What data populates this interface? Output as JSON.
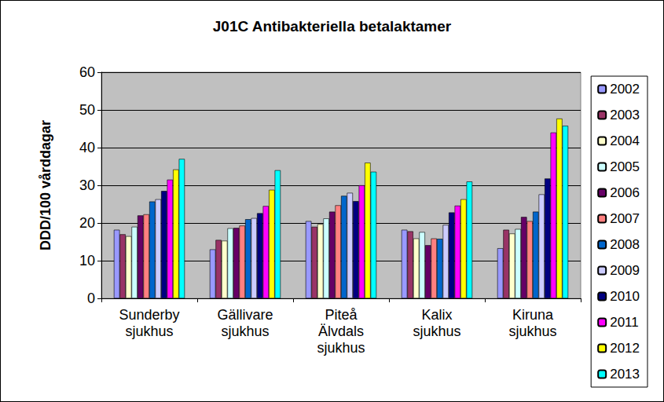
{
  "chart_data": {
    "type": "bar",
    "title": "J01C Antibakteriella betalaktamer",
    "y_label": "DDD/100 vårddagar",
    "categories": [
      "Sunderby\nsjukhus",
      "Gällivare\nsjukhus",
      "Piteå\nÄlvdals\nsjukhus",
      "Kalix\nsjukhus",
      "Kiruna\nsjukhus"
    ],
    "series": [
      {
        "name": "2002",
        "color": "#9999ff",
        "values": [
          18.2,
          13.0,
          20.5,
          18.2,
          13.3
        ]
      },
      {
        "name": "2003",
        "color": "#993366",
        "values": [
          17.0,
          15.5,
          19.0,
          17.8,
          18.2
        ]
      },
      {
        "name": "2004",
        "color": "#ffffcc",
        "values": [
          16.5,
          15.3,
          19.7,
          15.9,
          17.2
        ]
      },
      {
        "name": "2005",
        "color": "#ccffff",
        "values": [
          19.0,
          18.6,
          21.2,
          17.6,
          18.4
        ]
      },
      {
        "name": "2006",
        "color": "#660066",
        "values": [
          22.0,
          18.7,
          23.0,
          14.1,
          21.6
        ]
      },
      {
        "name": "2007",
        "color": "#ff8080",
        "values": [
          22.3,
          19.3,
          24.7,
          15.9,
          20.5
        ]
      },
      {
        "name": "2008",
        "color": "#0066cc",
        "values": [
          25.7,
          21.0,
          27.2,
          15.8,
          23.0
        ]
      },
      {
        "name": "2009",
        "color": "#ccccff",
        "values": [
          26.3,
          21.3,
          28.0,
          19.5,
          27.6
        ]
      },
      {
        "name": "2010",
        "color": "#000080",
        "values": [
          28.5,
          22.6,
          25.8,
          22.8,
          31.8
        ]
      },
      {
        "name": "2011",
        "color": "#ff00ff",
        "values": [
          31.5,
          24.5,
          30.0,
          24.6,
          44.0
        ]
      },
      {
        "name": "2012",
        "color": "#ffff00",
        "values": [
          34.2,
          28.8,
          36.0,
          26.3,
          47.7
        ]
      },
      {
        "name": "2013",
        "color": "#00ffff",
        "values": [
          37.0,
          34.0,
          33.6,
          31.0,
          45.8
        ]
      }
    ],
    "ylim": [
      0,
      60
    ],
    "yticks": [
      0,
      10,
      20,
      30,
      40,
      50,
      60
    ],
    "grid": true,
    "legend": "right"
  }
}
